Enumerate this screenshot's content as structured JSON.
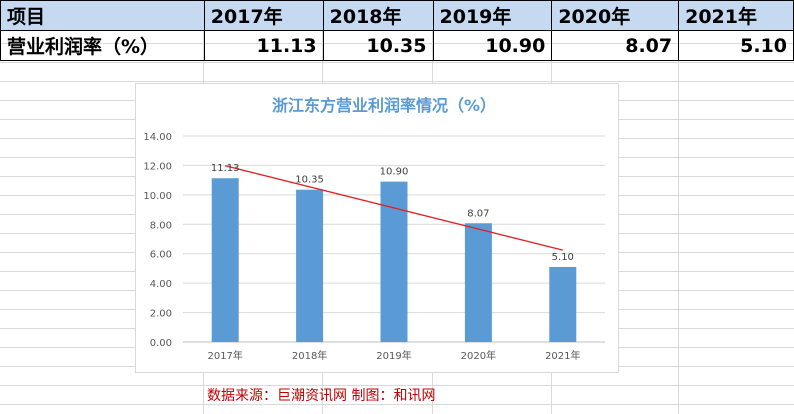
{
  "table": {
    "header_label": "项目",
    "years": [
      "2017年",
      "2018年",
      "2019年",
      "2020年",
      "2021年"
    ],
    "row_label": "营业利润率（%）",
    "values": [
      "11.13",
      "10.35",
      "10.90",
      "8.07",
      "5.10"
    ]
  },
  "colors": {
    "header_fill": "#c5d9f1",
    "bar": "#5b9bd5",
    "trendline": "#e02020",
    "title": "#5b9bd5",
    "source_text": "#c00000"
  },
  "chart_data": {
    "type": "bar",
    "title": "浙江东方营业利润率情况（%）",
    "categories": [
      "2017年",
      "2018年",
      "2019年",
      "2020年",
      "2021年"
    ],
    "values": [
      11.13,
      10.35,
      10.9,
      8.07,
      5.1
    ],
    "data_labels": [
      "11.13",
      "10.35",
      "10.90",
      "8.07",
      "5.10"
    ],
    "ylim": [
      0,
      14
    ],
    "yticks": [
      "0.00",
      "2.00",
      "4.00",
      "6.00",
      "8.00",
      "10.00",
      "12.00",
      "14.00"
    ],
    "grid": true,
    "trendline": "linear",
    "legend": "none"
  },
  "source_note": "数据来源：巨潮资讯网  制图：和讯网"
}
